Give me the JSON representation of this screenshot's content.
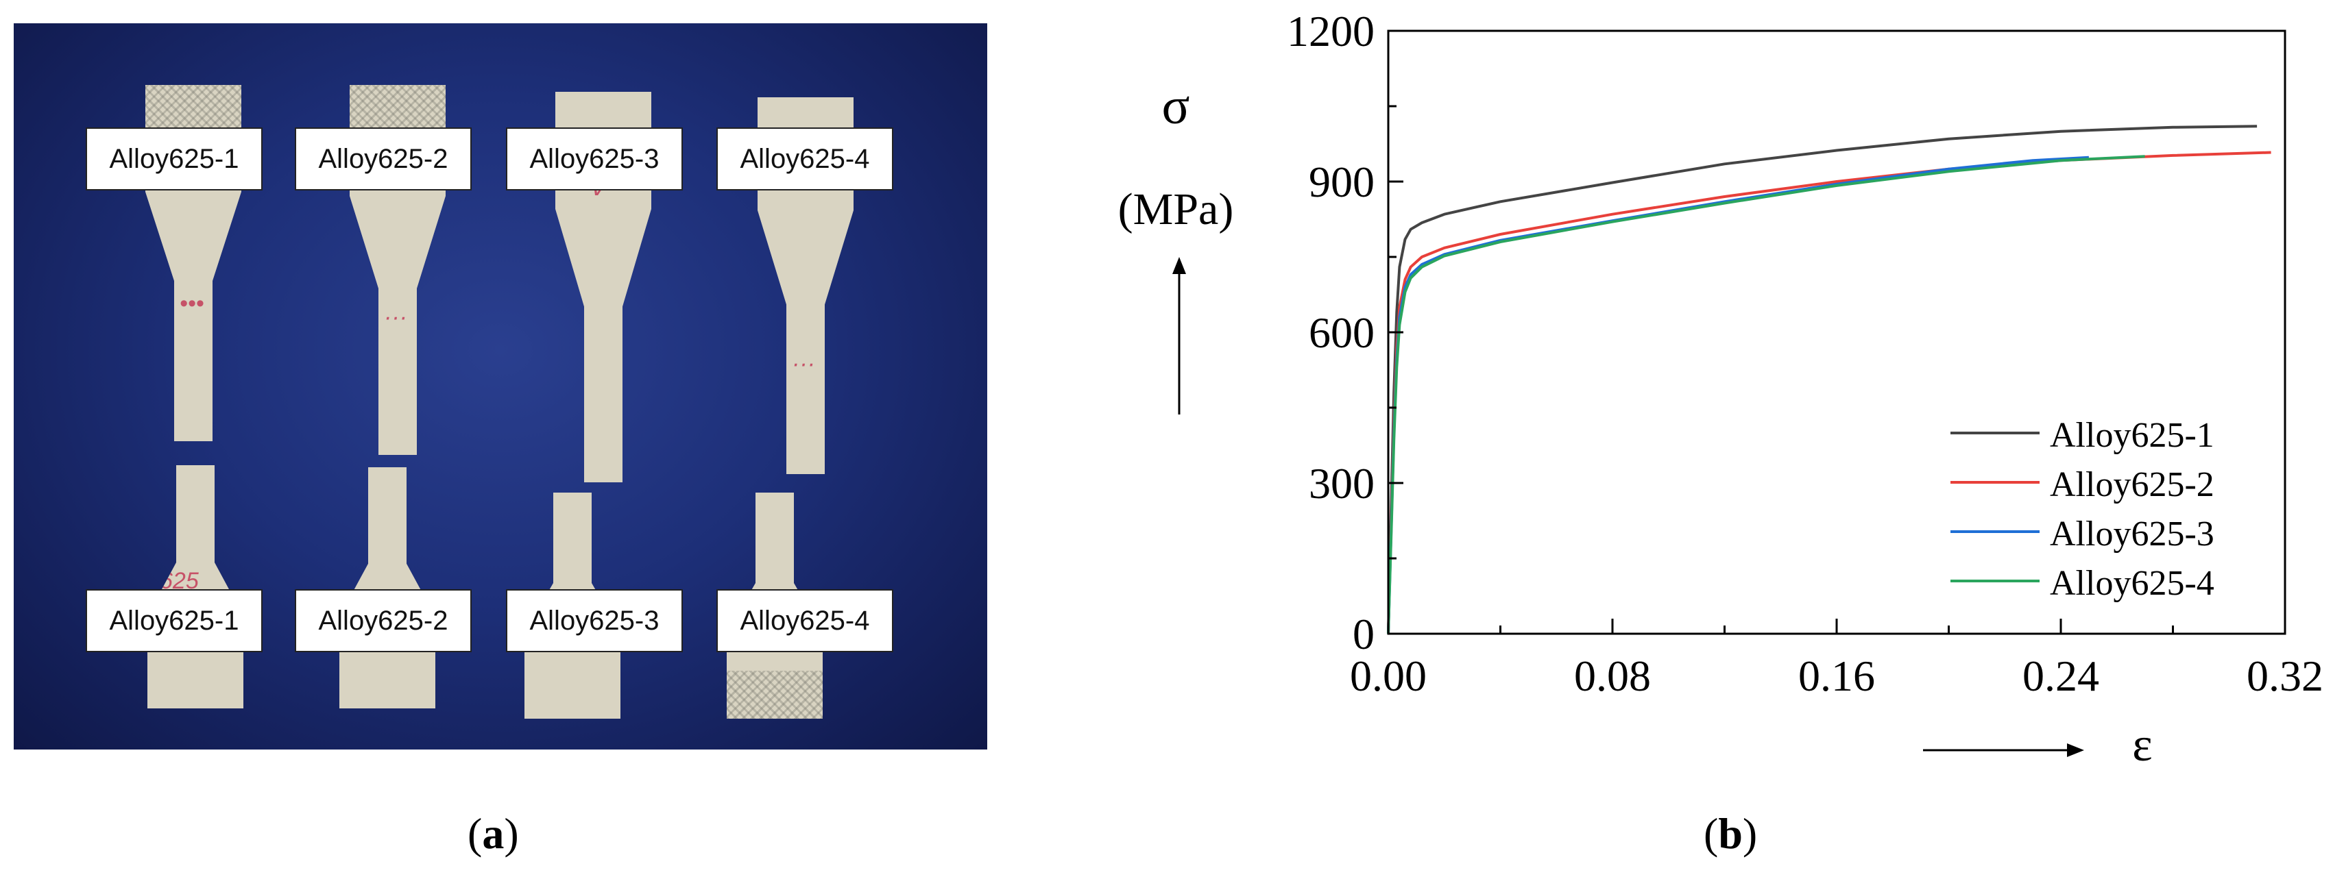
{
  "panel_a": {
    "caption": "a",
    "top_labels": [
      "Alloy625-1",
      "Alloy625-2",
      "Alloy625-3",
      "Alloy625-4"
    ],
    "bottom_labels": [
      "Alloy625-1",
      "Alloy625-2",
      "Alloy625-3",
      "Alloy625-4"
    ]
  },
  "panel_b": {
    "caption": "b"
  },
  "chart_data": {
    "type": "line",
    "ylabel_symbol": "σ",
    "ylabel_unit": "(MPa)",
    "xlabel": "ε",
    "xlim": [
      0,
      0.32
    ],
    "ylim": [
      0,
      1200
    ],
    "xticks": [
      "0.00",
      "0.08",
      "0.16",
      "0.24",
      "0.32"
    ],
    "yticks": [
      "0",
      "300",
      "600",
      "900",
      "1200"
    ],
    "legend_position": "bottom-right",
    "series": [
      {
        "name": "Alloy625-1",
        "color": "#444444",
        "points": [
          [
            0,
            0
          ],
          [
            0.001,
            250
          ],
          [
            0.002,
            480
          ],
          [
            0.003,
            640
          ],
          [
            0.004,
            730
          ],
          [
            0.006,
            785
          ],
          [
            0.008,
            805
          ],
          [
            0.012,
            818
          ],
          [
            0.02,
            835
          ],
          [
            0.04,
            860
          ],
          [
            0.08,
            898
          ],
          [
            0.12,
            935
          ],
          [
            0.16,
            962
          ],
          [
            0.2,
            985
          ],
          [
            0.24,
            1000
          ],
          [
            0.28,
            1008
          ],
          [
            0.31,
            1010
          ]
        ]
      },
      {
        "name": "Alloy625-2",
        "color": "#e8403a",
        "points": [
          [
            0,
            0
          ],
          [
            0.001,
            220
          ],
          [
            0.002,
            420
          ],
          [
            0.003,
            570
          ],
          [
            0.004,
            650
          ],
          [
            0.006,
            705
          ],
          [
            0.008,
            730
          ],
          [
            0.012,
            750
          ],
          [
            0.02,
            768
          ],
          [
            0.04,
            795
          ],
          [
            0.08,
            835
          ],
          [
            0.12,
            870
          ],
          [
            0.16,
            900
          ],
          [
            0.2,
            925
          ],
          [
            0.24,
            942
          ],
          [
            0.28,
            952
          ],
          [
            0.315,
            958
          ]
        ]
      },
      {
        "name": "Alloy625-3",
        "color": "#1f6fd6",
        "points": [
          [
            0,
            0
          ],
          [
            0.001,
            200
          ],
          [
            0.002,
            400
          ],
          [
            0.003,
            545
          ],
          [
            0.004,
            630
          ],
          [
            0.006,
            690
          ],
          [
            0.008,
            715
          ],
          [
            0.012,
            735
          ],
          [
            0.02,
            755
          ],
          [
            0.04,
            783
          ],
          [
            0.08,
            822
          ],
          [
            0.12,
            860
          ],
          [
            0.16,
            895
          ],
          [
            0.2,
            925
          ],
          [
            0.23,
            942
          ],
          [
            0.25,
            948
          ]
        ]
      },
      {
        "name": "Alloy625-4",
        "color": "#2aa55e",
        "points": [
          [
            0,
            0
          ],
          [
            0.001,
            190
          ],
          [
            0.002,
            385
          ],
          [
            0.003,
            530
          ],
          [
            0.004,
            615
          ],
          [
            0.006,
            680
          ],
          [
            0.008,
            708
          ],
          [
            0.012,
            730
          ],
          [
            0.02,
            752
          ],
          [
            0.04,
            780
          ],
          [
            0.08,
            820
          ],
          [
            0.12,
            857
          ],
          [
            0.16,
            892
          ],
          [
            0.2,
            920
          ],
          [
            0.24,
            942
          ],
          [
            0.27,
            950
          ]
        ]
      }
    ]
  }
}
